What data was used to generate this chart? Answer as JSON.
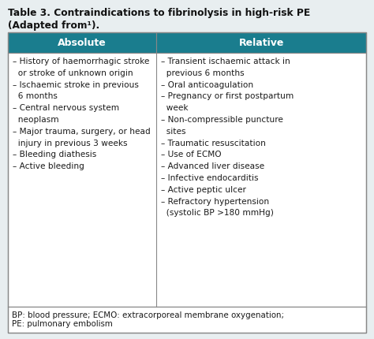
{
  "title_line1": "Table 3. Contraindications to fibrinolysis in high-risk PE",
  "title_line2": "(Adapted from¹).",
  "header_color": "#1a7d8e",
  "header_text_color": "#ffffff",
  "header_col1": "Absolute",
  "header_col2": "Relative",
  "col1_items": [
    "– History of haemorrhagic stroke\n  or stroke of unknown origin",
    "– Ischaemic stroke in previous\n  6 months",
    "– Central nervous system\n  neoplasm",
    "– Major trauma, surgery, or head\n  injury in previous 3 weeks",
    "– Bleeding diathesis",
    "– Active bleeding"
  ],
  "col2_items": [
    "– Transient ischaemic attack in\n  previous 6 months",
    "– Oral anticoagulation",
    "– Pregnancy or first postpartum\n  week",
    "– Non-compressible puncture\n  sites",
    "– Traumatic resuscitation",
    "– Use of ECMO",
    "– Advanced liver disease",
    "– Infective endocarditis",
    "– Active peptic ulcer",
    "– Refractory hypertension\n  (systolic BP >180 mmHg)"
  ],
  "footnote_line1": "BP: blood pressure; ECMO: extracorporeal membrane oxygenation;",
  "footnote_line2": "PE: pulmonary embolism",
  "bg_color": "#e8eef0",
  "table_bg": "#ffffff",
  "border_color": "#888888",
  "body_text_color": "#1a1a1a",
  "title_fontsize": 8.8,
  "header_fontsize": 9.0,
  "body_fontsize": 7.6,
  "footnote_fontsize": 7.4,
  "fig_width": 4.74,
  "fig_height": 4.31,
  "dpi": 100
}
